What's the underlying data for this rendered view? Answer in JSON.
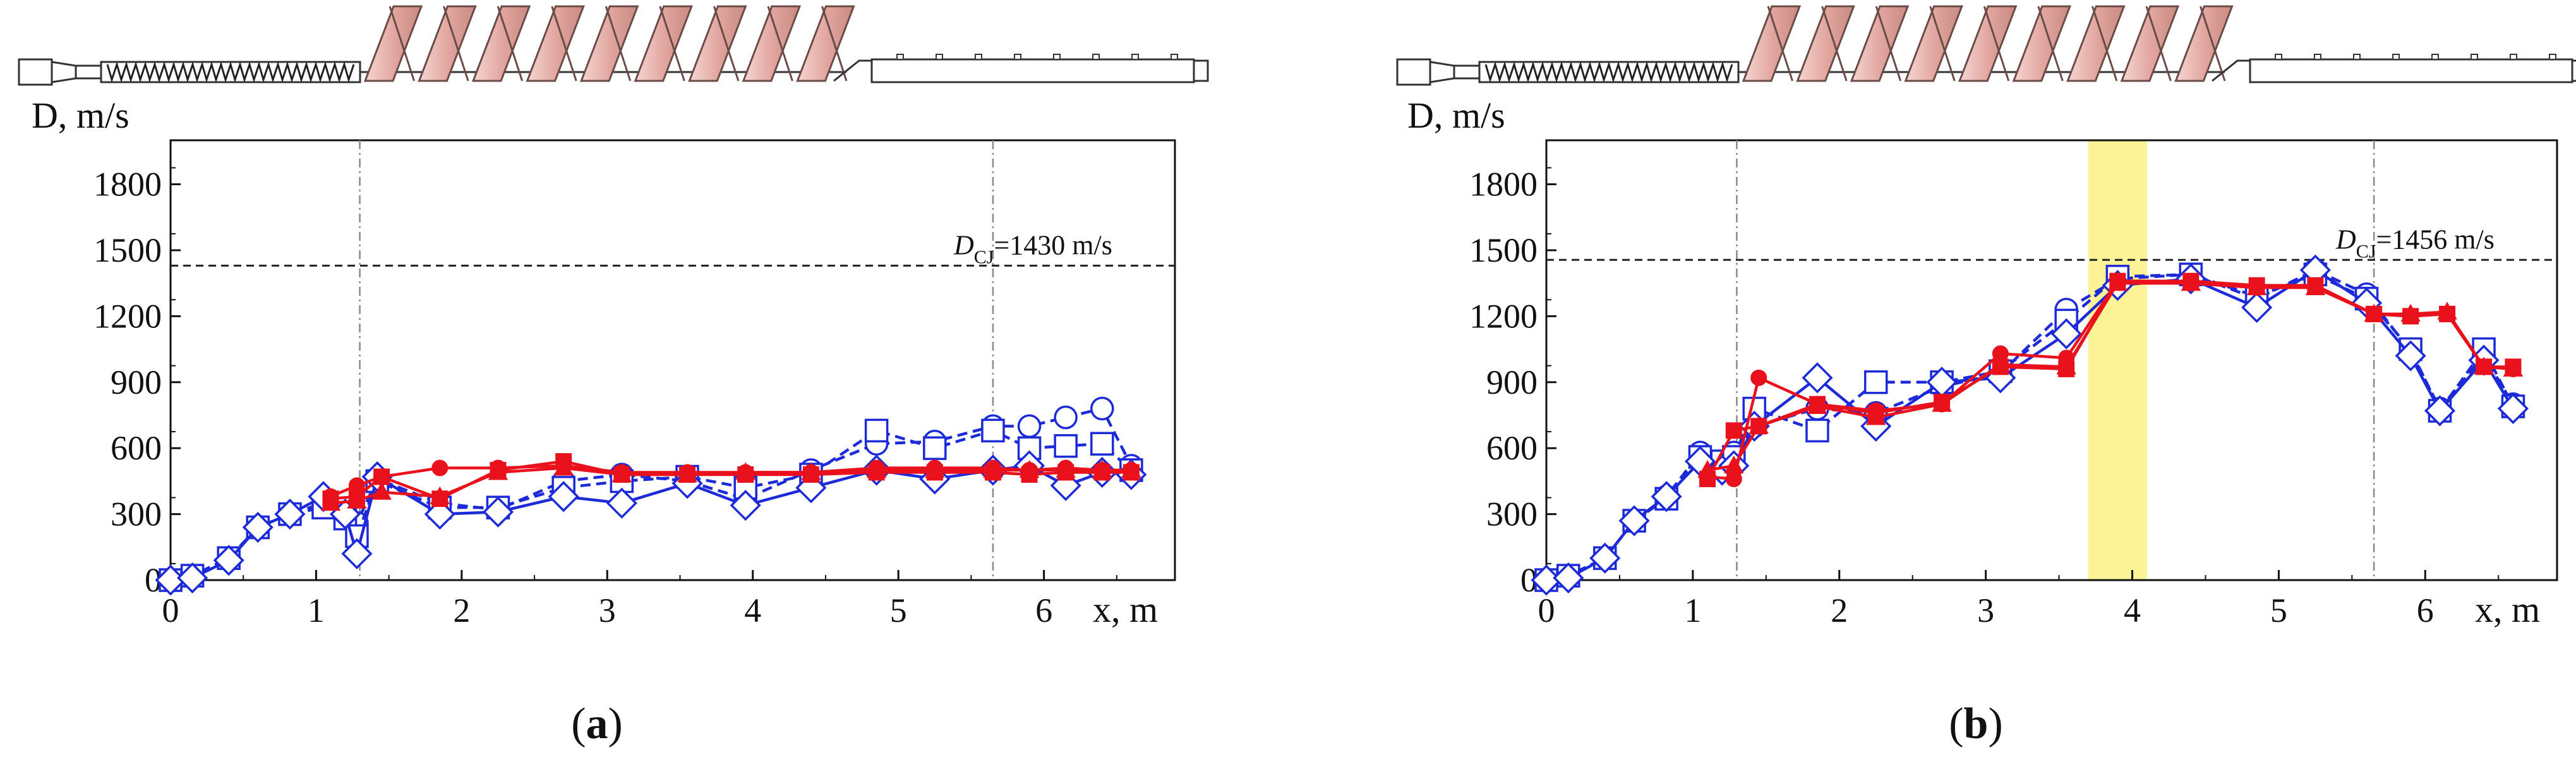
{
  "figure": {
    "panels": [
      "a",
      "b"
    ]
  },
  "chart_data": [
    {
      "id": "a",
      "type": "line",
      "panel_label": "a",
      "ylabel": "D, m/s",
      "xlabel": "x, m",
      "xlim": [
        0,
        6.9
      ],
      "ylim": [
        0,
        2000
      ],
      "xticks": [
        0,
        1,
        2,
        3,
        4,
        5,
        6
      ],
      "yticks": [
        0,
        300,
        600,
        900,
        1200,
        1500,
        1800
      ],
      "reference_line": {
        "value": 1430,
        "label_main": "D",
        "label_sub": "CJ",
        "label_value": "=1430 m/s"
      },
      "vlines": [
        1.3,
        5.65
      ],
      "highlight_band": null,
      "series": [
        {
          "name": "exp-blue-circle",
          "color": "#1c2ad8",
          "dash": true,
          "marker": "circle",
          "x": [
            0.0,
            0.15,
            0.4,
            0.6,
            0.82,
            1.05,
            1.2,
            1.28,
            1.42,
            1.85,
            2.25,
            2.7,
            3.1,
            3.55,
            3.95,
            4.4,
            4.85,
            5.25,
            5.65,
            5.9,
            6.15,
            6.4,
            6.6
          ],
          "y": [
            0,
            20,
            100,
            240,
            300,
            350,
            290,
            260,
            460,
            350,
            320,
            450,
            480,
            450,
            370,
            500,
            620,
            630,
            700,
            700,
            740,
            780,
            520
          ]
        },
        {
          "name": "exp-blue-square",
          "color": "#1c2ad8",
          "dash": true,
          "marker": "square",
          "x": [
            0.0,
            0.15,
            0.4,
            0.6,
            0.82,
            1.05,
            1.2,
            1.28,
            1.42,
            1.85,
            2.25,
            2.7,
            3.1,
            3.55,
            3.95,
            4.4,
            4.85,
            5.25,
            5.65,
            5.9,
            6.15,
            6.4,
            6.6
          ],
          "y": [
            0,
            20,
            100,
            240,
            300,
            330,
            280,
            200,
            450,
            330,
            330,
            420,
            450,
            470,
            420,
            480,
            680,
            600,
            680,
            600,
            610,
            620,
            500
          ]
        },
        {
          "name": "exp-blue-diamond",
          "color": "#1c2ad8",
          "dash": false,
          "marker": "diamond",
          "x": [
            0.0,
            0.15,
            0.4,
            0.6,
            0.82,
            1.05,
            1.2,
            1.28,
            1.42,
            1.85,
            2.25,
            2.7,
            3.1,
            3.55,
            3.95,
            4.4,
            4.85,
            5.25,
            5.65,
            5.9,
            6.15,
            6.4,
            6.6
          ],
          "y": [
            0,
            10,
            90,
            240,
            300,
            380,
            300,
            120,
            470,
            300,
            310,
            380,
            350,
            440,
            340,
            420,
            500,
            460,
            500,
            520,
            430,
            490,
            480
          ]
        },
        {
          "name": "calc-red-circle",
          "color": "#e8111c",
          "dash": false,
          "marker": "filled-circle",
          "x": [
            1.1,
            1.28,
            1.45,
            1.85,
            2.25,
            2.7,
            3.1,
            3.55,
            3.95,
            4.4,
            4.85,
            5.25,
            5.65,
            5.9,
            6.15,
            6.4,
            6.6
          ],
          "y": [
            380,
            430,
            470,
            510,
            510,
            520,
            490,
            490,
            490,
            490,
            510,
            510,
            510,
            500,
            510,
            500,
            500
          ]
        },
        {
          "name": "calc-red-square",
          "color": "#e8111c",
          "dash": false,
          "marker": "filled-square",
          "x": [
            1.1,
            1.28,
            1.45,
            1.85,
            2.25,
            2.7,
            3.1,
            3.55,
            3.95,
            4.4,
            4.85,
            5.25,
            5.65,
            5.9,
            6.15,
            6.4,
            6.6
          ],
          "y": [
            370,
            380,
            470,
            370,
            500,
            540,
            480,
            480,
            480,
            480,
            490,
            490,
            490,
            480,
            490,
            490,
            490
          ]
        },
        {
          "name": "calc-red-triangle",
          "color": "#e8111c",
          "dash": false,
          "marker": "filled-triangle",
          "x": [
            1.1,
            1.28,
            1.45,
            1.85,
            2.25,
            2.7,
            3.1,
            3.55,
            3.95,
            4.4,
            4.85,
            5.25,
            5.65,
            5.9,
            6.15,
            6.4,
            6.6
          ],
          "y": [
            350,
            360,
            400,
            380,
            490,
            510,
            480,
            480,
            490,
            490,
            500,
            500,
            500,
            500,
            500,
            500,
            500
          ]
        }
      ]
    },
    {
      "id": "b",
      "type": "line",
      "panel_label": "b",
      "ylabel": "D, m/s",
      "xlabel": "x, m",
      "xlim": [
        0,
        6.9
      ],
      "ylim": [
        0,
        2000
      ],
      "xticks": [
        0,
        1,
        2,
        3,
        4,
        5,
        6
      ],
      "yticks": [
        0,
        300,
        600,
        900,
        1200,
        1500,
        1800
      ],
      "reference_line": {
        "value": 1456,
        "label_main": "D",
        "label_sub": "CJ",
        "label_value": "=1456 m/s"
      },
      "vlines": [
        1.3,
        5.65
      ],
      "highlight_band": [
        3.7,
        4.1
      ],
      "highlight_color": "#fbf28a",
      "series": [
        {
          "name": "exp-blue-circle",
          "color": "#1c2ad8",
          "dash": true,
          "marker": "circle",
          "x": [
            0.0,
            0.15,
            0.4,
            0.6,
            0.82,
            1.05,
            1.2,
            1.28,
            1.42,
            1.85,
            2.25,
            2.7,
            3.1,
            3.55,
            3.9,
            4.4,
            4.85,
            5.25,
            5.6,
            5.9,
            6.1,
            6.4,
            6.6
          ],
          "y": [
            0,
            20,
            100,
            270,
            380,
            580,
            520,
            580,
            700,
            780,
            760,
            880,
            940,
            1230,
            1370,
            1390,
            1280,
            1410,
            1300,
            1040,
            780,
            1020,
            800
          ]
        },
        {
          "name": "exp-blue-square",
          "color": "#1c2ad8",
          "dash": true,
          "marker": "square",
          "x": [
            0.0,
            0.15,
            0.4,
            0.6,
            0.82,
            1.05,
            1.2,
            1.28,
            1.42,
            1.85,
            2.25,
            2.7,
            3.1,
            3.55,
            3.9,
            4.4,
            4.85,
            5.25,
            5.6,
            5.9,
            6.1,
            6.4,
            6.6
          ],
          "y": [
            0,
            20,
            100,
            270,
            370,
            560,
            540,
            560,
            780,
            680,
            900,
            900,
            950,
            1180,
            1380,
            1390,
            1290,
            1390,
            1280,
            1050,
            770,
            1050,
            790
          ]
        },
        {
          "name": "exp-blue-diamond",
          "color": "#1c2ad8",
          "dash": false,
          "marker": "diamond",
          "x": [
            0.0,
            0.15,
            0.4,
            0.6,
            0.82,
            1.05,
            1.2,
            1.28,
            1.42,
            1.85,
            2.25,
            2.7,
            3.1,
            3.55,
            3.9,
            4.4,
            4.85,
            5.25,
            5.6,
            5.9,
            6.1,
            6.4,
            6.6
          ],
          "y": [
            0,
            10,
            100,
            270,
            380,
            540,
            500,
            520,
            700,
            920,
            700,
            900,
            920,
            1120,
            1340,
            1370,
            1240,
            1410,
            1260,
            1020,
            770,
            1000,
            780
          ]
        },
        {
          "name": "calc-red-circle",
          "color": "#e8111c",
          "dash": false,
          "marker": "filled-circle",
          "x": [
            1.1,
            1.28,
            1.45,
            1.85,
            2.25,
            2.7,
            3.1,
            3.55,
            3.9,
            4.4,
            4.85,
            5.25,
            5.65,
            5.9,
            6.15,
            6.4,
            6.6
          ],
          "y": [
            470,
            460,
            920,
            800,
            770,
            800,
            1030,
            1010,
            1360,
            1350,
            1330,
            1340,
            1210,
            1200,
            1210,
            970,
            960
          ]
        },
        {
          "name": "calc-red-square",
          "color": "#e8111c",
          "dash": false,
          "marker": "filled-square",
          "x": [
            1.1,
            1.28,
            1.45,
            1.85,
            2.25,
            2.7,
            3.1,
            3.55,
            3.9,
            4.4,
            4.85,
            5.25,
            5.65,
            5.9,
            6.15,
            6.4,
            6.6
          ],
          "y": [
            460,
            680,
            700,
            800,
            760,
            810,
            970,
            960,
            1360,
            1360,
            1340,
            1340,
            1210,
            1200,
            1210,
            970,
            970
          ]
        },
        {
          "name": "calc-red-triangle",
          "color": "#e8111c",
          "dash": false,
          "marker": "filled-triangle",
          "x": [
            1.1,
            1.28,
            1.45,
            1.85,
            2.25,
            2.7,
            3.1,
            3.55,
            3.9,
            4.4,
            4.85,
            5.25,
            5.65,
            5.9,
            6.15,
            6.4,
            6.6
          ],
          "y": [
            500,
            520,
            700,
            790,
            740,
            800,
            980,
            970,
            1350,
            1350,
            1330,
            1330,
            1210,
            1210,
            1220,
            970,
            960
          ]
        }
      ]
    }
  ]
}
